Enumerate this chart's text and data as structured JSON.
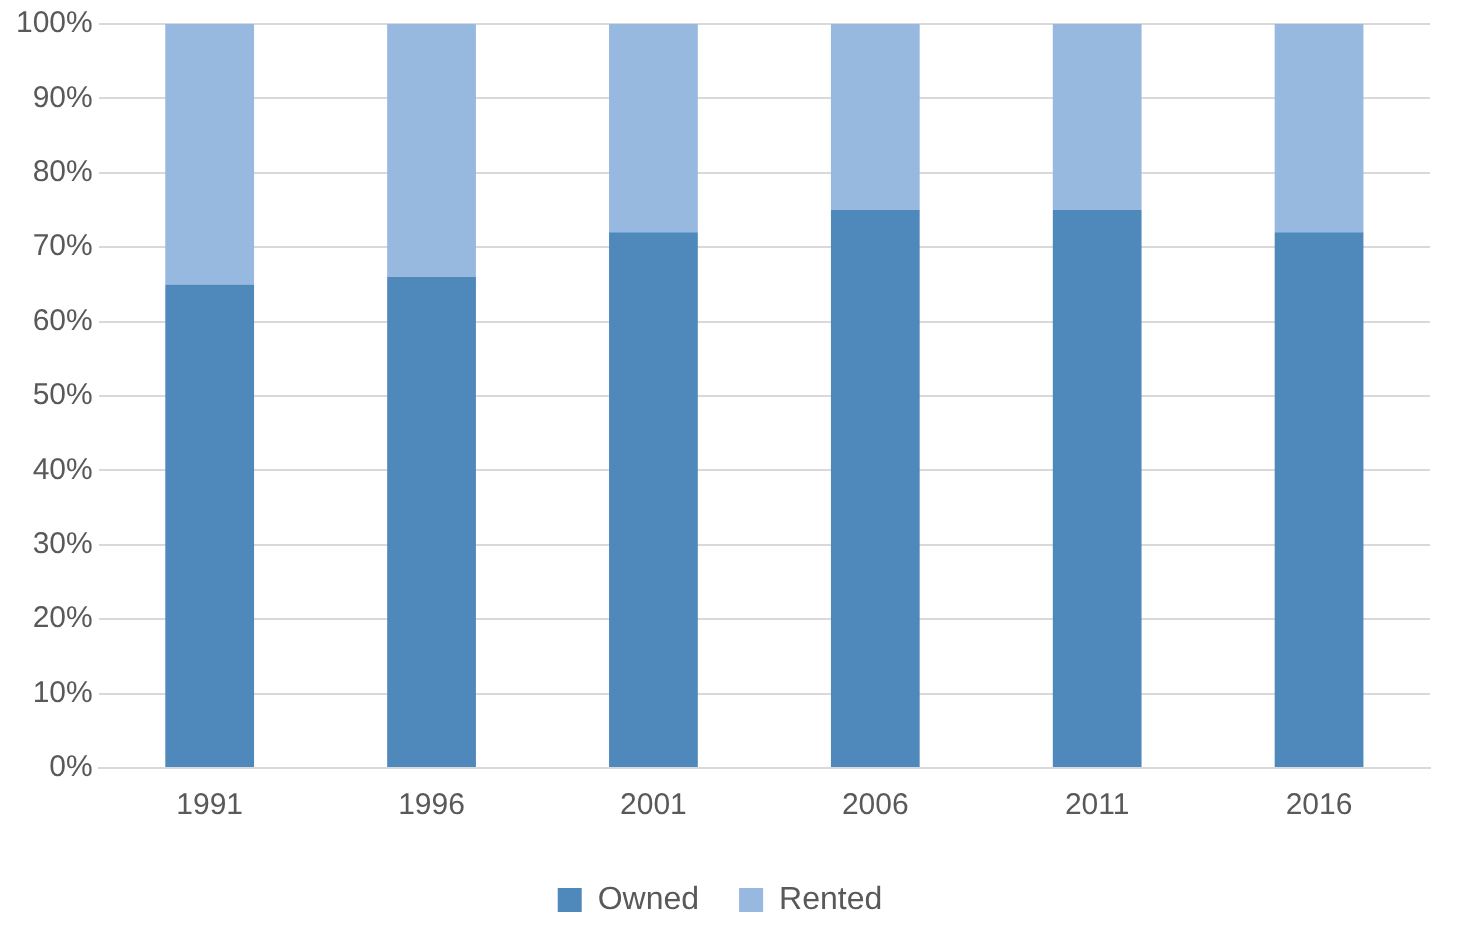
{
  "chart_data": {
    "type": "bar",
    "stacked": true,
    "categories": [
      "1991",
      "1996",
      "2001",
      "2006",
      "2011",
      "2016"
    ],
    "series": [
      {
        "name": "Owned",
        "color": "#4f88bb",
        "values": [
          65,
          66,
          72,
          75,
          75,
          72
        ]
      },
      {
        "name": "Rented",
        "color": "#97b8df",
        "values": [
          35,
          34,
          28,
          25,
          25,
          28
        ]
      }
    ],
    "ylim": [
      0,
      100
    ],
    "yticks": [
      {
        "value": 0,
        "label": "0%"
      },
      {
        "value": 10,
        "label": "10%"
      },
      {
        "value": 20,
        "label": "20%"
      },
      {
        "value": 30,
        "label": "30%"
      },
      {
        "value": 40,
        "label": "40%"
      },
      {
        "value": 50,
        "label": "50%"
      },
      {
        "value": 60,
        "label": "60%"
      },
      {
        "value": 70,
        "label": "70%"
      },
      {
        "value": 80,
        "label": "80%"
      },
      {
        "value": 90,
        "label": "90%"
      },
      {
        "value": 100,
        "label": "100%"
      }
    ],
    "grid": "y",
    "legend": "bottom"
  }
}
